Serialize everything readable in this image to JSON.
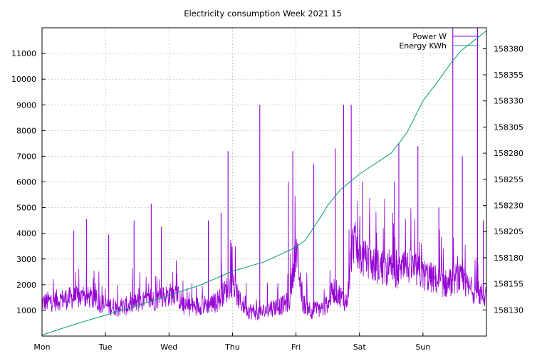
{
  "chart_data": {
    "type": "line",
    "title": "Electricity consumption Week 2021 15",
    "xlabel": "",
    "ylabel": "",
    "y2label": "",
    "x_ticks": [
      "Mon",
      "Tue",
      "Wed",
      "Thu",
      "Fri",
      "Sat",
      "Sun"
    ],
    "x_range_days": [
      0,
      7
    ],
    "ylim": [
      0,
      12000
    ],
    "y_ticks": [
      1000,
      2000,
      3000,
      4000,
      5000,
      6000,
      7000,
      8000,
      9000,
      10000,
      11000
    ],
    "y2lim": [
      158105,
      158400
    ],
    "y2_ticks": [
      158130,
      158155,
      158180,
      158205,
      158230,
      158255,
      158280,
      158305,
      158330,
      158355,
      158380
    ],
    "grid": true,
    "legend_position": "top-right",
    "series": [
      {
        "name": "Power W",
        "axis": "left",
        "color": "#9400d3",
        "style": "noisy-line",
        "x": [
          0,
          0.25,
          0.5,
          0.75,
          1.0,
          1.25,
          1.5,
          1.75,
          2.0,
          2.1,
          2.25,
          2.5,
          2.75,
          3.0,
          3.1,
          3.25,
          3.45,
          3.6,
          3.8,
          3.9,
          4.0,
          4.1,
          4.25,
          4.45,
          4.6,
          4.8,
          4.9,
          5.0,
          5.2,
          5.4,
          5.6,
          5.8,
          6.0,
          6.2,
          6.4,
          6.55,
          6.7,
          6.85,
          7.0
        ],
        "values": [
          1300,
          1400,
          1500,
          1500,
          1200,
          1100,
          1300,
          1400,
          1600,
          1700,
          1100,
          1200,
          1300,
          2100,
          1400,
          1000,
          900,
          1100,
          1200,
          1400,
          3500,
          1300,
          1000,
          1100,
          1800,
          1300,
          3800,
          3100,
          2800,
          2600,
          2500,
          2700,
          2400,
          2200,
          2000,
          2300,
          1900,
          1700,
          1500
        ],
        "spikes": [
          {
            "x": 0.5,
            "value": 4100
          },
          {
            "x": 0.7,
            "value": 4550
          },
          {
            "x": 1.05,
            "value": 3950
          },
          {
            "x": 1.45,
            "value": 4500
          },
          {
            "x": 1.72,
            "value": 5150
          },
          {
            "x": 1.88,
            "value": 4250
          },
          {
            "x": 2.62,
            "value": 4500
          },
          {
            "x": 2.82,
            "value": 4800
          },
          {
            "x": 2.93,
            "value": 7200
          },
          {
            "x": 3.43,
            "value": 9000
          },
          {
            "x": 3.88,
            "value": 6000
          },
          {
            "x": 3.95,
            "value": 7200
          },
          {
            "x": 4.28,
            "value": 6700
          },
          {
            "x": 4.62,
            "value": 7300
          },
          {
            "x": 4.75,
            "value": 9000
          },
          {
            "x": 4.87,
            "value": 9000
          },
          {
            "x": 5.05,
            "value": 6000
          },
          {
            "x": 5.55,
            "value": 6000
          },
          {
            "x": 5.62,
            "value": 7500
          },
          {
            "x": 5.92,
            "value": 7400
          },
          {
            "x": 6.25,
            "value": 5000
          },
          {
            "x": 6.47,
            "value": 12000
          },
          {
            "x": 6.62,
            "value": 7000
          },
          {
            "x": 6.86,
            "value": 12000
          },
          {
            "x": 6.95,
            "value": 4500
          }
        ]
      },
      {
        "name": "Energy KWh",
        "axis": "right",
        "color": "#009e73",
        "style": "line",
        "x": [
          0,
          0.5,
          1.0,
          1.5,
          2.0,
          2.5,
          3.0,
          3.5,
          4.0,
          4.15,
          4.4,
          4.5,
          4.7,
          5.0,
          5.5,
          5.75,
          6.0,
          6.25,
          6.45,
          6.6,
          6.85,
          7.0
        ],
        "values": [
          158106,
          158116,
          158125,
          158134,
          158144,
          158154,
          158167,
          158176,
          158190,
          158197,
          158220,
          158230,
          158245,
          158260,
          158280,
          158300,
          158330,
          158350,
          158367,
          158378,
          158390,
          158397
        ]
      }
    ]
  }
}
